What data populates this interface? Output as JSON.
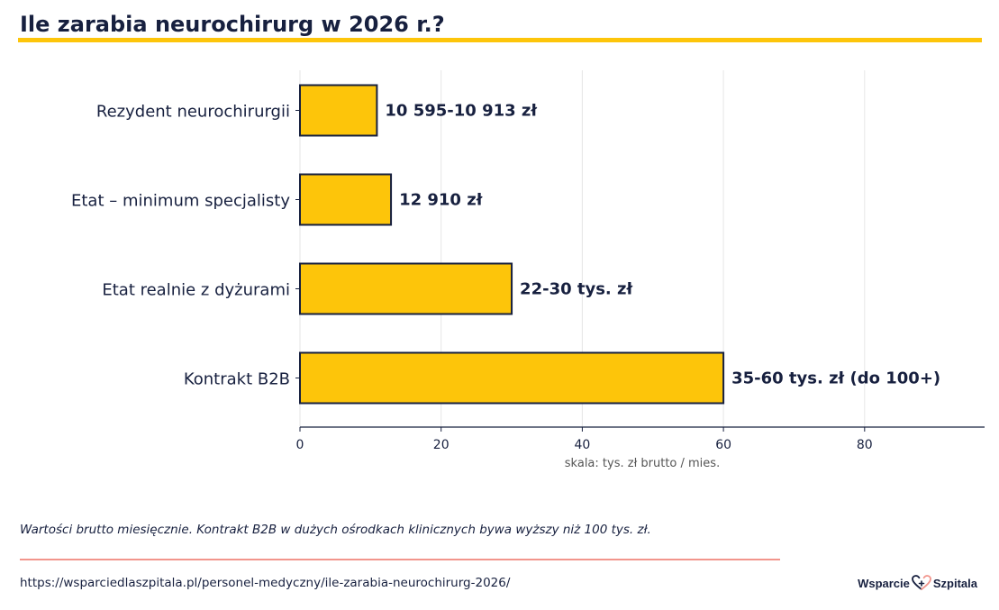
{
  "title": "Ile zarabia neurochirurg w 2026 r.?",
  "colors": {
    "accent": "#fdc50a",
    "navy": "#17203f",
    "grid": "#e6e6e6",
    "footer_rule": "#f2958c",
    "xlabel": "#555555"
  },
  "chart_data": {
    "type": "bar",
    "orientation": "horizontal",
    "title": "Ile zarabia neurochirurg w 2026 r.?",
    "xlabel": "skala: tys. zł brutto / mies.",
    "ylabel": "",
    "xlim": [
      0,
      97
    ],
    "xticks": [
      0,
      20,
      40,
      60,
      80
    ],
    "grid": "vertical",
    "categories": [
      "Rezydent neurochirurgii",
      "Etat – minimum specjalisty",
      "Etat realnie z dyżurami",
      "Kontrakt B2B"
    ],
    "values": [
      10.9,
      12.9,
      30,
      60
    ],
    "data_labels": [
      "10 595-10 913 zł",
      "12 910 zł",
      "22-30 tys. zł",
      "35-60 tys. zł (do 100+)"
    ]
  },
  "footer": {
    "note": "Wartości brutto miesięcznie. Kontrakt B2B w dużych ośrodkach klinicznych bywa wyższy niż 100 tys. zł.",
    "url": "https://wsparciedlaszpitala.pl/personel-medyczny/ile-zarabia-neurochirurg-2026/"
  },
  "logo": {
    "left_text": "Wsparcie",
    "right_text": "Szpitala",
    "icon": "heart-cross-icon"
  }
}
